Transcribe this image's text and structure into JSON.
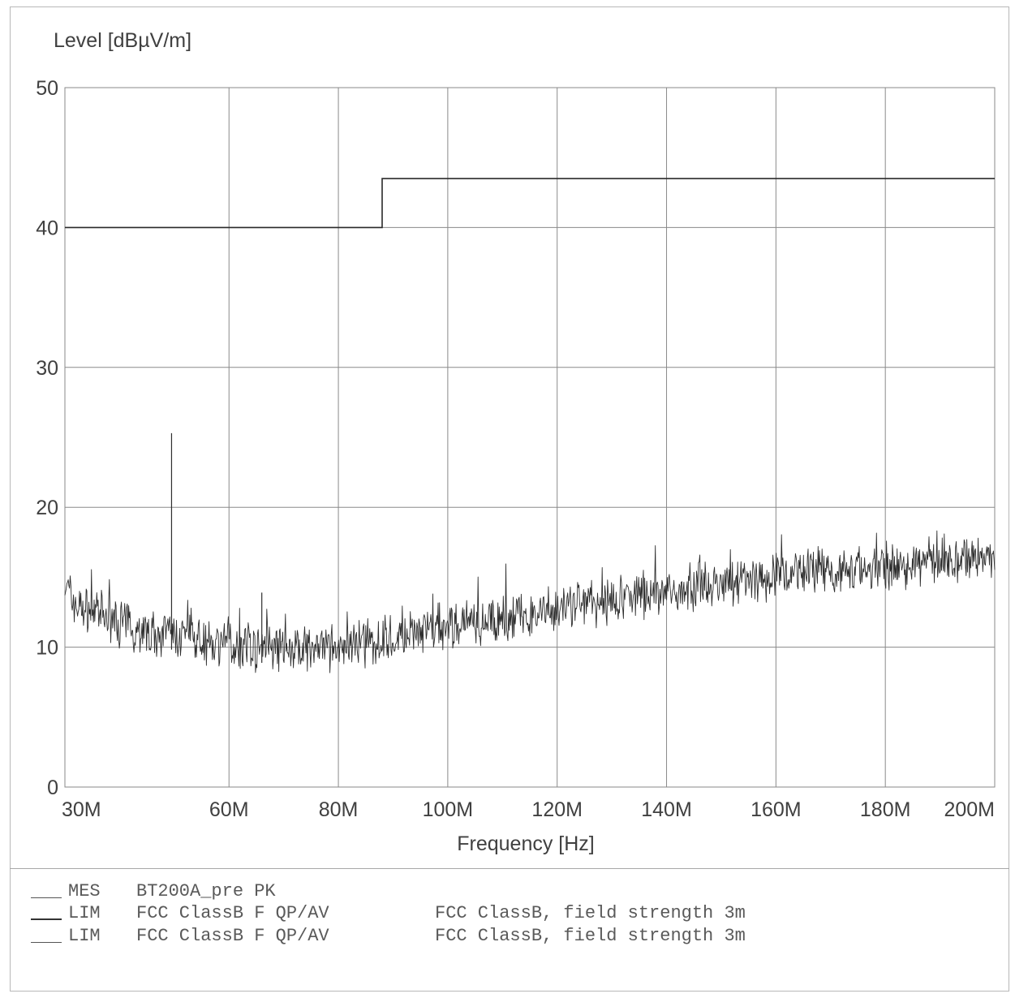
{
  "chart_data": {
    "type": "line",
    "title": "",
    "ylabel": "Level [dBµV/m]",
    "xlabel": "Frequency [Hz]",
    "ylim": [
      0,
      50
    ],
    "xlim": [
      30,
      200
    ],
    "x_ticks": [
      {
        "label": "30M",
        "value": 30
      },
      {
        "label": "60M",
        "value": 60
      },
      {
        "label": "80M",
        "value": 80
      },
      {
        "label": "100M",
        "value": 100
      },
      {
        "label": "120M",
        "value": 120
      },
      {
        "label": "140M",
        "value": 140
      },
      {
        "label": "160M",
        "value": 160
      },
      {
        "label": "180M",
        "value": 180
      },
      {
        "label": "200M",
        "value": 200
      }
    ],
    "y_ticks": [
      {
        "label": "0",
        "value": 0
      },
      {
        "label": "10",
        "value": 10
      },
      {
        "label": "20",
        "value": 20
      },
      {
        "label": "30",
        "value": 30
      },
      {
        "label": "40",
        "value": 40
      },
      {
        "label": "50",
        "value": 50
      }
    ],
    "grid": true,
    "series": [
      {
        "name": "MES BT200A_pre PK",
        "style": "noisy",
        "x": [
          30,
          32,
          35,
          38,
          40,
          43,
          46,
          50,
          55,
          60,
          65,
          70,
          75,
          80,
          85,
          88,
          92,
          95,
          98,
          100,
          105,
          110,
          115,
          120,
          125,
          130,
          135,
          140,
          145,
          150,
          155,
          160,
          165,
          170,
          175,
          180,
          185,
          190,
          195,
          200
        ],
        "values": [
          14.5,
          13,
          12.5,
          12,
          11.8,
          11.3,
          11,
          10.8,
          10.5,
          10.1,
          9.9,
          9.8,
          9.8,
          9.9,
          10.2,
          10.5,
          10.8,
          11,
          11.3,
          11.5,
          11.7,
          12,
          12.3,
          12.7,
          13.1,
          13.4,
          13.7,
          14,
          14.3,
          14.5,
          14.8,
          15,
          15.2,
          15.4,
          15.6,
          15.8,
          16,
          16.2,
          16.3,
          16.5
        ],
        "spikes": [
          {
            "x": 49.5,
            "y": 25.3
          },
          {
            "x": 66,
            "y": 13.9
          }
        ]
      },
      {
        "name": "LIM FCC ClassB F QP/AV",
        "style": "step",
        "x": [
          30,
          88,
          88,
          200
        ],
        "values": [
          40,
          40,
          43.5,
          43.5
        ]
      }
    ]
  },
  "legend": {
    "rows": [
      {
        "kind": "MES",
        "desc": "BT200A_pre PK",
        "note": ""
      },
      {
        "kind": "LIM",
        "desc": "FCC ClassB F QP/AV",
        "note": "FCC ClassB, field strength 3m"
      },
      {
        "kind": "LIM",
        "desc": "FCC ClassB F QP/AV",
        "note": "FCC ClassB, field strength 3m"
      }
    ]
  },
  "colors": {
    "trace": "#2e2e2e",
    "limit": "#2a2a2a",
    "grid": "#8a8a8a",
    "text": "#404040"
  }
}
